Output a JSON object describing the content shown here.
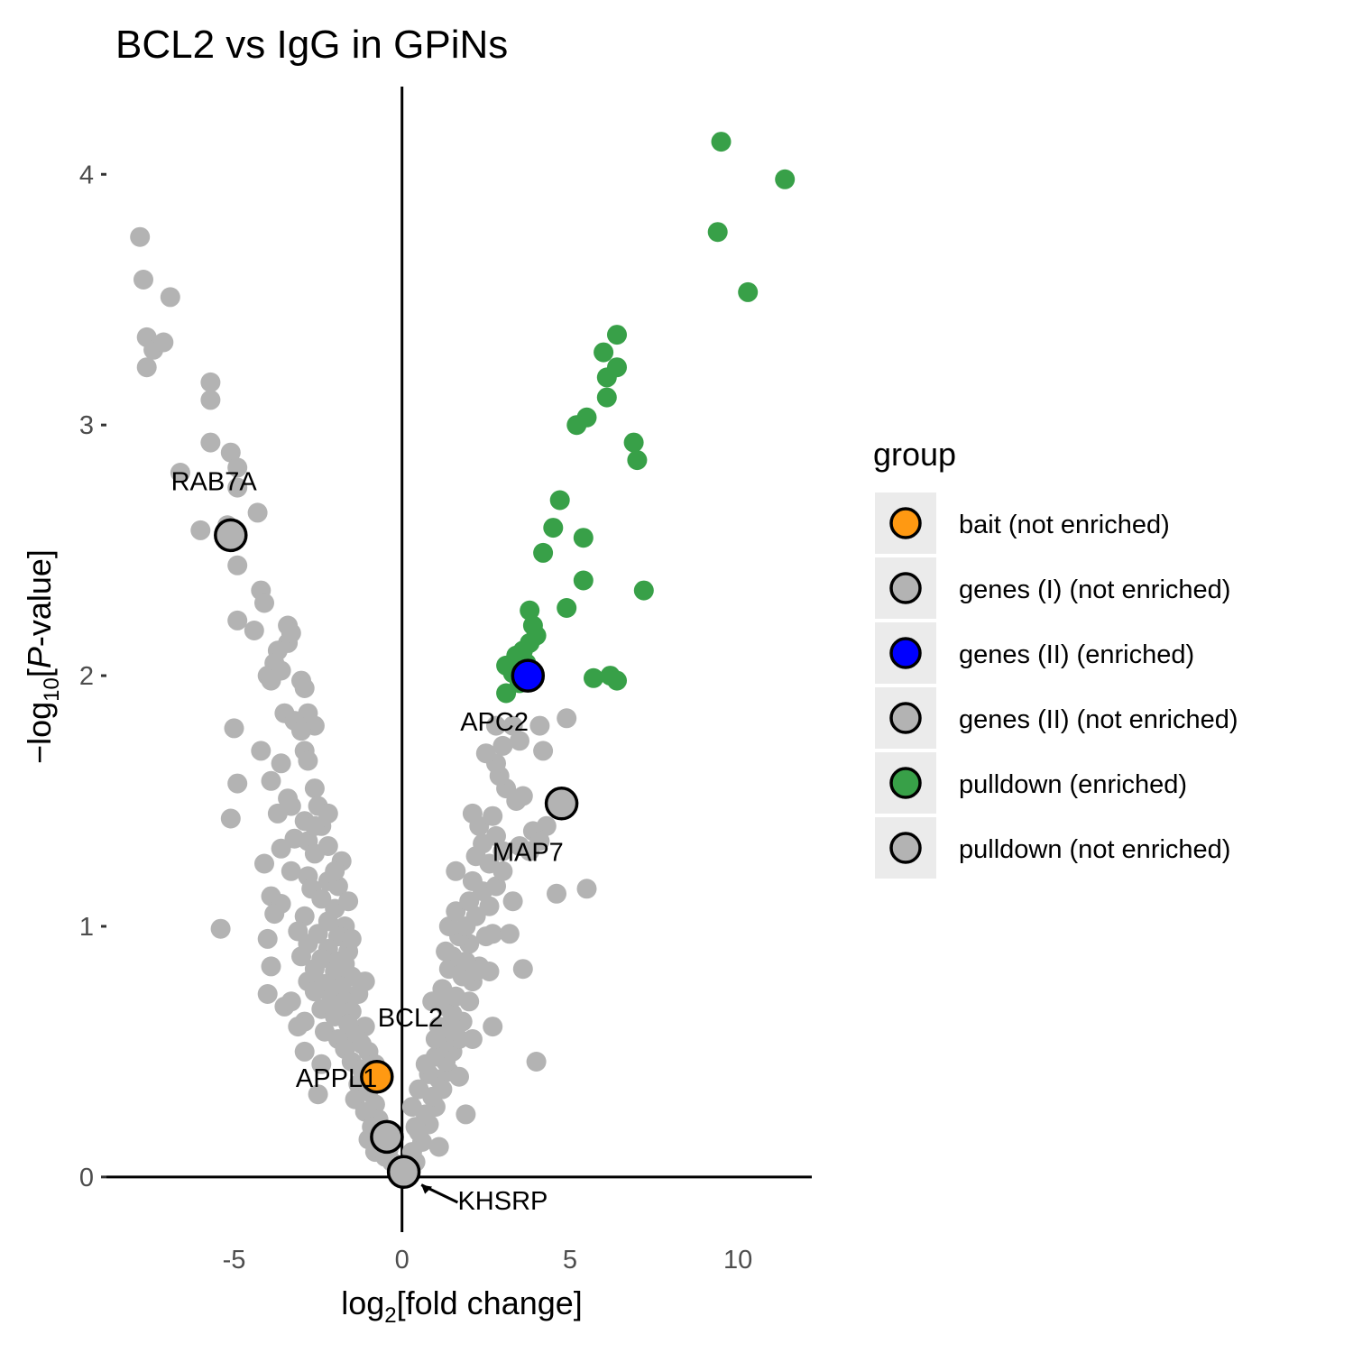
{
  "chart_data": {
    "type": "scatter",
    "title": "BCL2 vs IgG in GPiNs",
    "xlabel": {
      "prefix": "log",
      "sub": "2",
      "suffix": "[fold change]"
    },
    "ylabel": {
      "prefix": "−log",
      "sub": "10",
      "mid": "[",
      "italic": "P",
      "suffix": "-value]"
    },
    "xlim": [
      -8.8,
      12.2
    ],
    "ylim": [
      -0.22,
      4.35
    ],
    "xticks": [
      -5,
      0,
      5,
      10
    ],
    "yticks": [
      0,
      1,
      2,
      3,
      4
    ],
    "xtick_labels": [
      "-5",
      "0",
      "5",
      "10"
    ],
    "ytick_labels": [
      "0",
      "1",
      "2",
      "3",
      "4"
    ],
    "grid": false,
    "reference_lines": {
      "x": 0,
      "y": 0
    },
    "legend": {
      "title": "group",
      "position": "right",
      "entries": [
        {
          "label": "bait (not enriched)",
          "color": "#FF9912",
          "outlined": true
        },
        {
          "label": "genes (I) (not enriched)",
          "color": "#B3B3B3",
          "outlined": true
        },
        {
          "label": "genes (II) (enriched)",
          "color": "#0000FF",
          "outlined": true
        },
        {
          "label": "genes (II) (not enriched)",
          "color": "#B3B3B3",
          "outlined": true
        },
        {
          "label": "pulldown (enriched)",
          "color": "#38A048",
          "outlined": true
        },
        {
          "label": "pulldown (not enriched)",
          "color": "#B3B3B3",
          "outlined": true
        }
      ]
    },
    "colors": {
      "pulldown_not_enriched": "#B3B3B3",
      "pulldown_enriched": "#38A048",
      "bait": "#FF9912",
      "genes_enriched": "#0000FF",
      "outline": "#000000"
    },
    "series": [
      {
        "name": "pulldown (not enriched)",
        "color": "#B3B3B3",
        "points": [
          [
            -7.8,
            3.75
          ],
          [
            -7.7,
            3.58
          ],
          [
            -7.6,
            3.35
          ],
          [
            -7.6,
            3.23
          ],
          [
            -7.4,
            3.3
          ],
          [
            -7.1,
            3.33
          ],
          [
            -6.9,
            3.51
          ],
          [
            -5.7,
            3.17
          ],
          [
            -5.7,
            3.1
          ],
          [
            -5.7,
            2.93
          ],
          [
            -6.6,
            2.81
          ],
          [
            -5.1,
            2.89
          ],
          [
            -4.9,
            2.83
          ],
          [
            -4.9,
            2.75
          ],
          [
            -6.0,
            2.58
          ],
          [
            -5.2,
            2.6
          ],
          [
            -4.3,
            2.65
          ],
          [
            -4.9,
            2.44
          ],
          [
            -4.2,
            2.34
          ],
          [
            -4.1,
            2.29
          ],
          [
            -4.9,
            2.22
          ],
          [
            -4.4,
            2.18
          ],
          [
            -3.4,
            2.2
          ],
          [
            -3.4,
            2.13
          ],
          [
            -3.3,
            2.17
          ],
          [
            -3.7,
            2.1
          ],
          [
            -3.8,
            2.05
          ],
          [
            -4.0,
            2.0
          ],
          [
            -3.9,
            1.98
          ],
          [
            -3.6,
            2.02
          ],
          [
            -3.0,
            1.98
          ],
          [
            -2.9,
            1.95
          ],
          [
            -3.5,
            1.85
          ],
          [
            -2.8,
            1.85
          ],
          [
            -3.2,
            1.82
          ],
          [
            -2.6,
            1.8
          ],
          [
            -3.0,
            1.78
          ],
          [
            -5.0,
            1.79
          ],
          [
            -4.2,
            1.7
          ],
          [
            -2.9,
            1.7
          ],
          [
            -3.6,
            1.65
          ],
          [
            -2.8,
            1.66
          ],
          [
            -3.9,
            1.58
          ],
          [
            -4.9,
            1.57
          ],
          [
            -2.6,
            1.55
          ],
          [
            -3.4,
            1.51
          ],
          [
            -3.3,
            1.48
          ],
          [
            -2.5,
            1.48
          ],
          [
            -3.7,
            1.45
          ],
          [
            -5.1,
            1.43
          ],
          [
            -2.9,
            1.42
          ],
          [
            -2.4,
            1.4
          ],
          [
            -3.2,
            1.35
          ],
          [
            -2.8,
            1.34
          ],
          [
            -2.2,
            1.32
          ],
          [
            -3.6,
            1.31
          ],
          [
            -2.6,
            1.29
          ],
          [
            -1.8,
            1.26
          ],
          [
            -4.1,
            1.25
          ],
          [
            -3.3,
            1.22
          ],
          [
            -2.8,
            1.2
          ],
          [
            -2.2,
            1.18
          ],
          [
            -1.9,
            1.16
          ],
          [
            -2.7,
            1.15
          ],
          [
            -3.9,
            1.12
          ],
          [
            -3.6,
            1.09
          ],
          [
            -2.4,
            1.11
          ],
          [
            -2.0,
            1.07
          ],
          [
            -3.8,
            1.05
          ],
          [
            -2.9,
            1.04
          ],
          [
            -2.2,
            1.02
          ],
          [
            -1.7,
            1.0
          ],
          [
            -5.4,
            0.99
          ],
          [
            -3.1,
            0.98
          ],
          [
            -2.5,
            0.97
          ],
          [
            -1.9,
            0.96
          ],
          [
            -4.0,
            0.95
          ],
          [
            -2.8,
            0.93
          ],
          [
            -2.2,
            0.91
          ],
          [
            -1.6,
            0.9
          ],
          [
            -3.0,
            0.88
          ],
          [
            -2.4,
            0.87
          ],
          [
            -1.9,
            0.86
          ],
          [
            -3.9,
            0.84
          ],
          [
            -2.6,
            0.83
          ],
          [
            -2.0,
            0.82
          ],
          [
            -1.5,
            0.8
          ],
          [
            -2.8,
            0.78
          ],
          [
            -2.3,
            0.77
          ],
          [
            -1.8,
            0.76
          ],
          [
            -2.6,
            0.74
          ],
          [
            -1.3,
            0.73
          ],
          [
            -4.0,
            0.73
          ],
          [
            -2.1,
            0.71
          ],
          [
            -1.7,
            0.7
          ],
          [
            -3.5,
            0.68
          ],
          [
            -2.4,
            0.67
          ],
          [
            -1.5,
            0.66
          ],
          [
            -2.0,
            0.64
          ],
          [
            -2.9,
            0.62
          ],
          [
            -1.6,
            0.61
          ],
          [
            -1.1,
            0.6
          ],
          [
            -2.3,
            0.58
          ],
          [
            -1.4,
            0.57
          ],
          [
            -1.9,
            0.55
          ],
          [
            -1.2,
            0.53
          ],
          [
            -1.7,
            0.51
          ],
          [
            -1.0,
            0.5
          ],
          [
            -2.4,
            0.45
          ],
          [
            -1.5,
            0.46
          ],
          [
            -1.2,
            0.43
          ],
          [
            -0.9,
            0.41
          ],
          [
            -1.3,
            0.37
          ],
          [
            -1.0,
            0.34
          ],
          [
            -1.4,
            0.31
          ],
          [
            -0.8,
            0.29
          ],
          [
            -1.1,
            0.26
          ],
          [
            -0.7,
            0.23
          ],
          [
            -0.9,
            0.2
          ],
          [
            -1.0,
            0.15
          ],
          [
            -0.6,
            0.13
          ],
          [
            -0.8,
            0.1
          ],
          [
            -0.5,
            0.08
          ],
          [
            -0.3,
            0.06
          ],
          [
            -0.4,
            0.11
          ],
          [
            0.2,
            0.02
          ],
          [
            0.4,
            0.06
          ],
          [
            0.3,
            0.1
          ],
          [
            0.6,
            0.14
          ],
          [
            0.5,
            0.18
          ],
          [
            0.8,
            0.21
          ],
          [
            0.7,
            0.25
          ],
          [
            1.0,
            0.28
          ],
          [
            0.9,
            0.32
          ],
          [
            1.2,
            0.35
          ],
          [
            1.1,
            0.39
          ],
          [
            0.8,
            0.41
          ],
          [
            1.4,
            0.42
          ],
          [
            1.3,
            0.46
          ],
          [
            1.0,
            0.48
          ],
          [
            1.5,
            0.5
          ],
          [
            1.2,
            0.53
          ],
          [
            1.7,
            0.55
          ],
          [
            1.4,
            0.58
          ],
          [
            1.1,
            0.6
          ],
          [
            1.8,
            0.62
          ],
          [
            1.5,
            0.65
          ],
          [
            1.3,
            0.68
          ],
          [
            2.0,
            0.7
          ],
          [
            1.6,
            0.72
          ],
          [
            1.2,
            0.75
          ],
          [
            2.1,
            0.78
          ],
          [
            1.8,
            0.8
          ],
          [
            1.4,
            0.83
          ],
          [
            2.3,
            0.84
          ],
          [
            2.6,
            0.82
          ],
          [
            1.9,
            0.86
          ],
          [
            1.5,
            0.88
          ],
          [
            1.3,
            0.9
          ],
          [
            2.0,
            0.93
          ],
          [
            1.7,
            0.96
          ],
          [
            2.5,
            0.96
          ],
          [
            1.4,
            1.0
          ],
          [
            1.9,
            1.0
          ],
          [
            2.7,
            0.97
          ],
          [
            3.2,
            0.97
          ],
          [
            3.6,
            0.83
          ],
          [
            2.2,
            1.04
          ],
          [
            1.6,
            1.06
          ],
          [
            2.6,
            1.08
          ],
          [
            2.0,
            1.1
          ],
          [
            2.4,
            1.14
          ],
          [
            3.3,
            1.1
          ],
          [
            2.8,
            1.16
          ],
          [
            2.1,
            1.18
          ],
          [
            3.0,
            1.22
          ],
          [
            2.6,
            1.25
          ],
          [
            1.6,
            1.22
          ],
          [
            2.2,
            1.28
          ],
          [
            3.0,
            1.3
          ],
          [
            2.4,
            1.33
          ],
          [
            3.5,
            1.32
          ],
          [
            2.8,
            1.36
          ],
          [
            2.3,
            1.4
          ],
          [
            4.3,
            1.4
          ],
          [
            3.9,
            1.38
          ],
          [
            2.1,
            1.45
          ],
          [
            2.7,
            1.44
          ],
          [
            4.6,
            1.13
          ],
          [
            5.5,
            1.15
          ],
          [
            3.8,
            1.3
          ],
          [
            4.1,
            1.34
          ],
          [
            3.4,
            1.5
          ],
          [
            3.1,
            1.55
          ],
          [
            3.6,
            1.52
          ],
          [
            2.9,
            1.6
          ],
          [
            2.8,
            1.65
          ],
          [
            2.5,
            1.69
          ],
          [
            3.0,
            1.72
          ],
          [
            3.5,
            1.74
          ],
          [
            4.2,
            1.7
          ],
          [
            2.8,
            1.8
          ],
          [
            3.3,
            1.8
          ],
          [
            4.1,
            1.8
          ],
          [
            4.9,
            1.83
          ],
          [
            2.2,
            0.82
          ],
          [
            2.7,
            0.6
          ],
          [
            4.0,
            0.46
          ],
          [
            1.1,
            0.12
          ],
          [
            -2.5,
            0.33
          ],
          [
            -3.1,
            0.6
          ],
          [
            -2.9,
            0.5
          ],
          [
            -3.3,
            0.7
          ],
          [
            -2.6,
            1.4
          ],
          [
            -2.2,
            1.45
          ],
          [
            -2.0,
            1.22
          ],
          [
            -1.6,
            1.1
          ],
          [
            -1.5,
            0.95
          ],
          [
            -1.1,
            0.78
          ],
          [
            -1.7,
            0.85
          ],
          [
            -0.8,
            0.45
          ],
          [
            0.5,
            0.35
          ],
          [
            0.3,
            0.28
          ],
          [
            0.7,
            0.45
          ],
          [
            1.0,
            0.55
          ],
          [
            0.4,
            0.2
          ],
          [
            1.7,
            0.4
          ],
          [
            1.9,
            0.25
          ],
          [
            0.9,
            0.7
          ],
          [
            2.1,
            0.55
          ]
        ]
      },
      {
        "name": "pulldown (enriched)",
        "color": "#38A048",
        "points": [
          [
            9.5,
            4.13
          ],
          [
            11.4,
            3.98
          ],
          [
            9.4,
            3.77
          ],
          [
            10.3,
            3.53
          ],
          [
            6.4,
            3.36
          ],
          [
            6.0,
            3.29
          ],
          [
            6.4,
            3.23
          ],
          [
            6.1,
            3.19
          ],
          [
            6.1,
            3.11
          ],
          [
            5.5,
            3.03
          ],
          [
            5.2,
            3.0
          ],
          [
            6.9,
            2.93
          ],
          [
            7.0,
            2.86
          ],
          [
            4.7,
            2.7
          ],
          [
            4.5,
            2.59
          ],
          [
            5.4,
            2.55
          ],
          [
            4.2,
            2.49
          ],
          [
            5.4,
            2.38
          ],
          [
            7.2,
            2.34
          ],
          [
            3.8,
            2.26
          ],
          [
            4.9,
            2.27
          ],
          [
            3.9,
            2.2
          ],
          [
            4.0,
            2.16
          ],
          [
            3.8,
            2.13
          ],
          [
            3.6,
            2.1
          ],
          [
            3.7,
            2.05
          ],
          [
            3.4,
            2.08
          ],
          [
            3.1,
            2.04
          ],
          [
            3.3,
            2.01
          ],
          [
            3.5,
            1.97
          ],
          [
            3.1,
            1.93
          ],
          [
            5.7,
            1.99
          ],
          [
            6.2,
            2.0
          ],
          [
            6.4,
            1.98
          ],
          [
            3.8,
            2.01
          ]
        ]
      },
      {
        "name": "genes (II) (enriched)",
        "color": "#0000FF",
        "outlined": true,
        "points": [
          [
            3.75,
            2.0
          ]
        ],
        "labels": [
          "APC2"
        ]
      },
      {
        "name": "bait (not enriched)",
        "color": "#FF9912",
        "outlined": true,
        "points": [
          [
            -0.75,
            0.4
          ]
        ],
        "labels": [
          "BCL2"
        ]
      },
      {
        "name": "genes (not enriched)",
        "color": "#B3B3B3",
        "outlined": true,
        "points": [
          [
            -5.1,
            2.56
          ],
          [
            4.75,
            1.49
          ],
          [
            -0.45,
            0.16
          ],
          [
            0.05,
            0.02
          ]
        ],
        "labels": [
          "RAB7A",
          "MAP7",
          "APPL1",
          "KHSRP"
        ]
      }
    ],
    "annotations": [
      {
        "text": "RAB7A",
        "x": -5.6,
        "y": 2.74
      },
      {
        "text": "APC2",
        "x": 2.75,
        "y": 1.78
      },
      {
        "text": "MAP7",
        "x": 3.75,
        "y": 1.26
      },
      {
        "text": "BCL2",
        "x": 0.25,
        "y": 0.6
      },
      {
        "text": "APPL1",
        "x": -1.95,
        "y": 0.36
      },
      {
        "text": "KHSRP",
        "x": 3.0,
        "y": -0.13,
        "arrow_to": [
          0.2,
          -0.01
        ]
      }
    ]
  }
}
